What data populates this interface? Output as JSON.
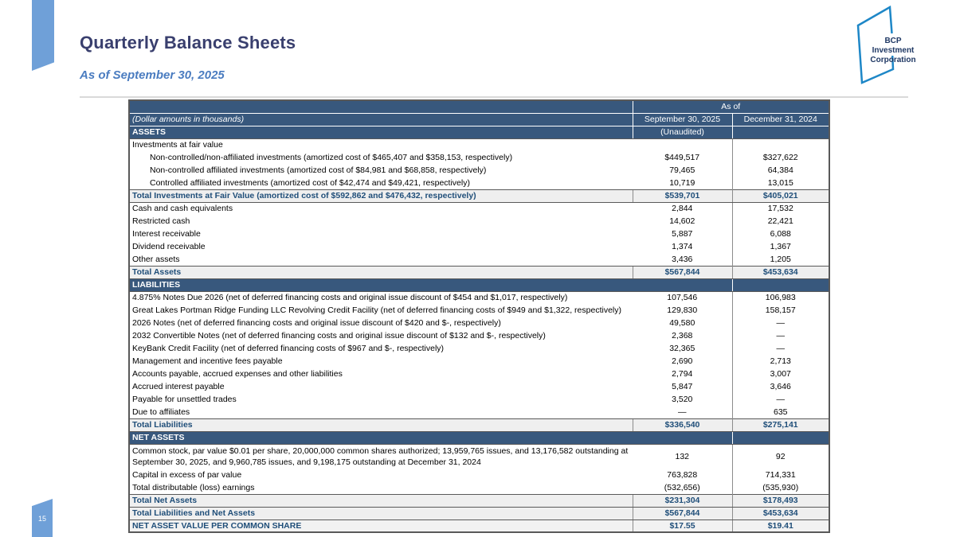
{
  "page": {
    "number": "15"
  },
  "header": {
    "title": "Quarterly Balance Sheets",
    "subtitle": "As of September 30, 2025"
  },
  "logo": {
    "line1": "BCP Investment",
    "line2": "Corporation"
  },
  "colors": {
    "header_blue": "#38587D",
    "total_text_blue": "#1F4E79",
    "light_blue_accent": "#6FA0D8",
    "logo_outline_blue": "#1E87C7",
    "title_navy": "#393F6E",
    "subtitle_blue": "#4A7CC0"
  },
  "table": {
    "as_of_label": "As of",
    "note": "(Dollar amounts in thousands)",
    "col1": "September 30, 2025",
    "col2": "December 31, 2024",
    "assets_label": "ASSETS",
    "unaudited": "(Unaudited)",
    "rows": [
      {
        "type": "plain",
        "label": "Investments at fair value",
        "v1": "",
        "v2": ""
      },
      {
        "type": "indent",
        "label": "Non-controlled/non-affiliated investments (amortized cost of $465,407 and $358,153, respectively)",
        "v1": "$449,517",
        "v2": "$327,622"
      },
      {
        "type": "indent",
        "label": "Non-controlled affiliated investments (amortized cost of $84,981 and $68,858, respectively)",
        "v1": "79,465",
        "v2": "64,384"
      },
      {
        "type": "indent",
        "label": "Controlled affiliated investments (amortized cost of $42,474 and $49,421, respectively)",
        "v1": "10,719",
        "v2": "13,015"
      },
      {
        "type": "total",
        "label": "Total Investments at Fair Value (amortized cost of $592,862 and $476,432, respectively)",
        "v1": "$539,701",
        "v2": "$405,021"
      },
      {
        "type": "plain",
        "label": "Cash and cash equivalents",
        "v1": "2,844",
        "v2": "17,532"
      },
      {
        "type": "plain",
        "label": "Restricted cash",
        "v1": "14,602",
        "v2": "22,421"
      },
      {
        "type": "plain",
        "label": "Interest receivable",
        "v1": "5,887",
        "v2": "6,088"
      },
      {
        "type": "plain",
        "label": "Dividend receivable",
        "v1": "1,374",
        "v2": "1,367"
      },
      {
        "type": "plain",
        "label": "Other assets",
        "v1": "3,436",
        "v2": "1,205"
      },
      {
        "type": "total",
        "label": "Total Assets",
        "v1": "$567,844",
        "v2": "$453,634"
      },
      {
        "type": "section",
        "label": "LIABILITIES",
        "v1": "",
        "v2": ""
      },
      {
        "type": "plain",
        "label": "4.875% Notes Due 2026 (net of deferred financing costs and original issue discount of $454 and $1,017, respectively)",
        "v1": "107,546",
        "v2": "106,983"
      },
      {
        "type": "plain",
        "label": "Great Lakes Portman Ridge Funding LLC Revolving Credit Facility (net of deferred financing costs of $949 and $1,322, respectively)",
        "v1": "129,830",
        "v2": "158,157"
      },
      {
        "type": "plain",
        "label": "2026 Notes (net of deferred financing costs and original issue discount of $420 and $-, respectively)",
        "v1": "49,580",
        "v2": "—"
      },
      {
        "type": "plain",
        "label": "2032 Convertible Notes (net of deferred financing costs and original issue discount of $132 and $-, respectively)",
        "v1": "2,368",
        "v2": "—"
      },
      {
        "type": "plain",
        "label": "KeyBank Credit Facility (net of deferred financing costs of $967 and $-, respectively)",
        "v1": "32,365",
        "v2": "—"
      },
      {
        "type": "plain",
        "label": "Management and incentive fees payable",
        "v1": "2,690",
        "v2": "2,713"
      },
      {
        "type": "plain",
        "label": "Accounts payable, accrued expenses and other liabilities",
        "v1": "2,794",
        "v2": "3,007"
      },
      {
        "type": "plain",
        "label": "Accrued interest payable",
        "v1": "5,847",
        "v2": "3,646"
      },
      {
        "type": "plain",
        "label": "Payable for unsettled trades",
        "v1": "3,520",
        "v2": "—"
      },
      {
        "type": "plain",
        "label": "Due to affiliates",
        "v1": "—",
        "v2": "635"
      },
      {
        "type": "total",
        "label": "Total Liabilities",
        "v1": "$336,540",
        "v2": "$275,141"
      },
      {
        "type": "section",
        "label": "NET ASSETS",
        "v1": "",
        "v2": ""
      },
      {
        "type": "twoline",
        "label": "Common stock, par value $0.01 per share, 20,000,000 common shares authorized; 13,959,765 issues, and 13,176,582 outstanding at September 30, 2025, and 9,960,785 issues, and 9,198,175 outstanding at December 31, 2024",
        "v1": "132",
        "v2": "92"
      },
      {
        "type": "plain",
        "label": "Capital in excess of par value",
        "v1": "763,828",
        "v2": "714,331"
      },
      {
        "type": "plain",
        "label": "Total distributable (loss) earnings",
        "v1": "(532,656)",
        "v2": "(535,930)"
      },
      {
        "type": "total",
        "label": "Total Net Assets",
        "v1": "$231,304",
        "v2": "$178,493"
      },
      {
        "type": "total",
        "label": "Total Liabilities and Net Assets",
        "v1": "$567,844",
        "v2": "$453,634"
      },
      {
        "type": "nav",
        "label": "NET ASSET VALUE PER COMMON SHARE",
        "v1": "$17.55",
        "v2": "$19.41"
      }
    ]
  }
}
